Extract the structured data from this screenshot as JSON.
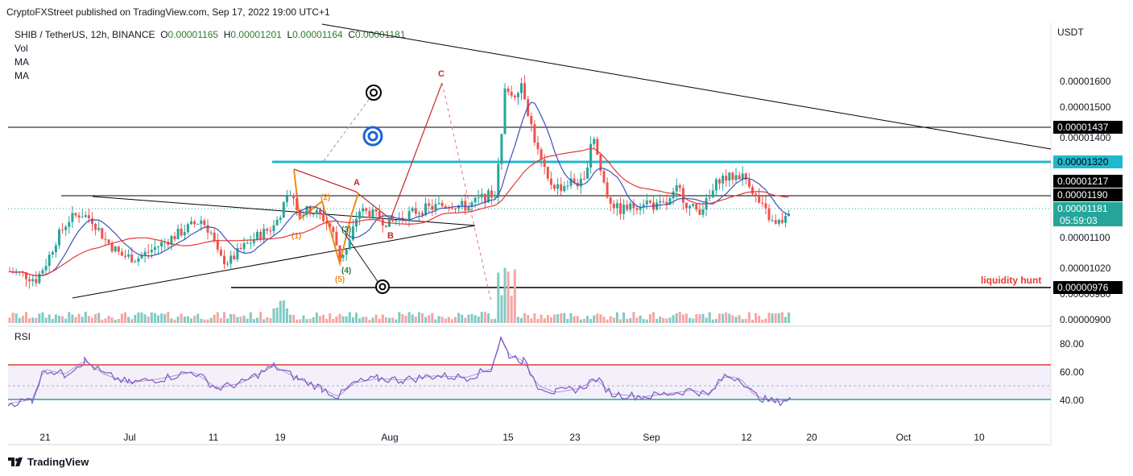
{
  "header": {
    "published": "CryptoFXStreet published on TradingView.com, Sep 17, 2022 19:00 UTC+1"
  },
  "symbol": {
    "name": "SHIB / TetherUS, 12h, BINANCE",
    "o_label": "O",
    "o_value": "0.00001165",
    "h_label": "H",
    "h_value": "0.00001201",
    "l_label": "L",
    "l_value": "0.00001164",
    "c_label": "C",
    "c_value": "0.00001181"
  },
  "indicators": [
    "Vol",
    "MA",
    "MA"
  ],
  "currency": "USDT",
  "rsi_label": "RSI",
  "footer": {
    "brand": "TradingView"
  },
  "annotations": {
    "liquidity": "liquidity hunt",
    "wave_a": "A",
    "wave_b": "B",
    "wave_c": "C",
    "wave_1": "(1)",
    "wave_2": "(2)",
    "wave_3": "(3)",
    "wave_4": "(4)",
    "wave_5": "(5)"
  },
  "chart_data": {
    "type": "candlestick",
    "price_axis": {
      "ticks": [
        "0.00001600",
        "0.00001500",
        "0.00001400",
        "0.00001100",
        "0.00001020",
        "0.00000980",
        "0.00000900"
      ],
      "ylim": [
        8.85e-06,
        1.74e-05
      ]
    },
    "price_labels": [
      {
        "value": "0.00001437",
        "style": "dark"
      },
      {
        "value": "0.00001320",
        "style": "cyan"
      },
      {
        "value": "0.00001217",
        "style": "dark"
      },
      {
        "value": "0.00001190",
        "style": "dark"
      },
      {
        "value": "0.00001181",
        "style": "green",
        "countdown": "05:59:03"
      },
      {
        "value": "0.00000976",
        "style": "dark"
      }
    ],
    "x_axis": {
      "ticks": [
        "21",
        "Jul",
        "11",
        "19",
        "Aug",
        "15",
        "23",
        "Sep",
        "12",
        "20",
        "Oct",
        "10"
      ]
    },
    "rsi": {
      "ticks": [
        "80.00",
        "60.00",
        "40.00"
      ],
      "ylim": [
        20,
        90
      ],
      "upper_band": 65,
      "lower_band": 40,
      "last": 41
    },
    "series": [
      {
        "name": "SHIB / TetherUS",
        "kind": "candles",
        "up_color": "#26a69a",
        "down_color": "#ef5350"
      },
      {
        "name": "MA",
        "color": "#3f51b5"
      },
      {
        "name": "MA",
        "color": "#e53935"
      }
    ],
    "last_close": 1.181e-05
  }
}
